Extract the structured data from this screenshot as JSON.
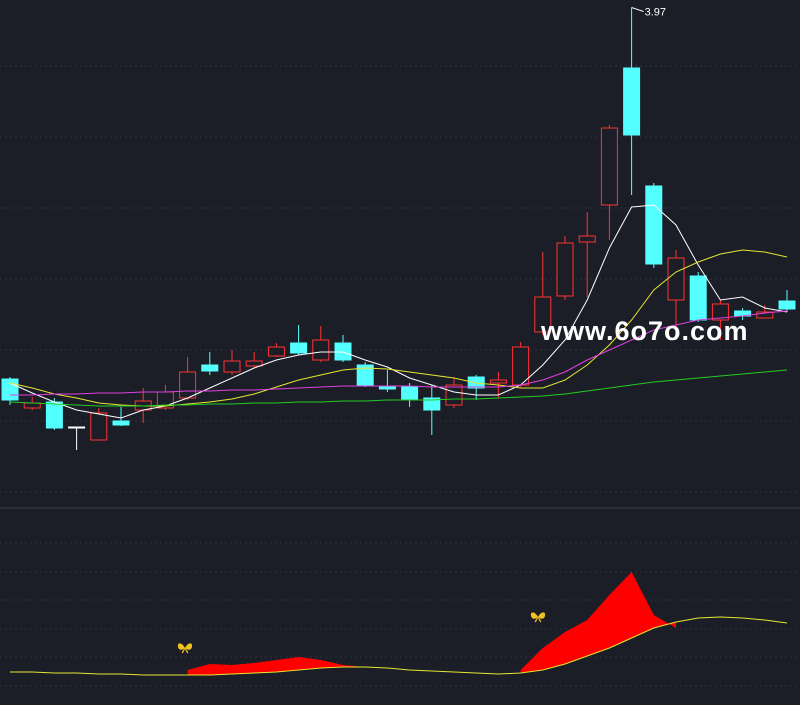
{
  "chart_data": [
    {
      "type": "candlestick",
      "ylim": [
        2,
        4
      ],
      "up_color": "#ff3232",
      "down_color": "#54ffff",
      "flat_color": "#ffffff",
      "open": [
        2.484,
        2.368,
        2.392,
        2.292,
        2.24,
        2.316,
        2.36,
        2.368,
        2.408,
        2.54,
        2.512,
        2.536,
        2.576,
        2.628,
        2.56,
        2.628,
        2.54,
        2.456,
        2.452,
        2.408,
        2.38,
        2.492,
        2.468,
        2.46,
        2.672,
        2.816,
        3.032,
        3.18,
        3.728,
        3.256,
        2.8,
        2.896,
        2.72,
        2.756,
        2.728,
        2.796
      ],
      "high": [
        2.492,
        2.412,
        2.408,
        2.292,
        2.368,
        2.372,
        2.448,
        2.46,
        2.572,
        2.592,
        2.6,
        2.592,
        2.628,
        2.7,
        2.696,
        2.66,
        2.552,
        2.52,
        2.468,
        2.46,
        2.488,
        2.5,
        2.512,
        2.632,
        2.992,
        3.056,
        3.152,
        3.5,
        3.97,
        3.268,
        3.0,
        2.912,
        2.8,
        2.768,
        2.78,
        2.84
      ],
      "low": [
        2.38,
        2.36,
        2.28,
        2.2,
        2.24,
        2.296,
        2.308,
        2.36,
        2.4,
        2.5,
        2.5,
        2.528,
        2.572,
        2.58,
        2.552,
        2.552,
        2.452,
        2.432,
        2.372,
        2.26,
        2.368,
        2.4,
        2.408,
        2.452,
        2.66,
        2.8,
        2.812,
        3.04,
        3.22,
        2.928,
        2.64,
        2.712,
        2.64,
        2.72,
        2.728,
        2.752
      ],
      "close": [
        2.4,
        2.388,
        2.288,
        2.292,
        2.348,
        2.3,
        2.396,
        2.432,
        2.512,
        2.516,
        2.556,
        2.556,
        2.612,
        2.588,
        2.64,
        2.56,
        2.46,
        2.444,
        2.4,
        2.36,
        2.46,
        2.448,
        2.48,
        2.612,
        2.812,
        3.028,
        3.056,
        3.488,
        3.46,
        2.944,
        2.968,
        2.72,
        2.784,
        2.736,
        2.752,
        2.764
      ],
      "high_label_index": 28,
      "lines": [
        {
          "color": "#ffffff",
          "values": [
            2.468,
            2.428,
            2.392,
            2.36,
            2.344,
            2.328,
            2.36,
            2.376,
            2.408,
            2.448,
            2.488,
            2.528,
            2.56,
            2.58,
            2.592,
            2.592,
            2.56,
            2.532,
            2.488,
            2.46,
            2.432,
            2.42,
            2.42,
            2.46,
            2.54,
            2.64,
            2.8,
            3.008,
            3.172,
            3.18,
            3.1,
            2.94,
            2.8,
            2.812,
            2.768,
            2.752
          ]
        },
        {
          "color": "#e6e632",
          "values": [
            2.468,
            2.448,
            2.424,
            2.408,
            2.388,
            2.38,
            2.376,
            2.376,
            2.384,
            2.392,
            2.404,
            2.424,
            2.452,
            2.48,
            2.5,
            2.52,
            2.528,
            2.524,
            2.512,
            2.5,
            2.488,
            2.468,
            2.46,
            2.448,
            2.448,
            2.48,
            2.54,
            2.62,
            2.72,
            2.84,
            2.912,
            2.952,
            2.984,
            3.0,
            2.992,
            2.972
          ]
        },
        {
          "color": "#e040e0",
          "values": [
            2.42,
            2.42,
            2.424,
            2.424,
            2.428,
            2.428,
            2.432,
            2.432,
            2.436,
            2.436,
            2.44,
            2.44,
            2.444,
            2.448,
            2.452,
            2.456,
            2.456,
            2.456,
            2.456,
            2.452,
            2.452,
            2.452,
            2.452,
            2.46,
            2.48,
            2.512,
            2.56,
            2.6,
            2.64,
            2.68,
            2.7,
            2.72,
            2.728,
            2.736,
            2.748,
            2.756
          ]
        },
        {
          "color": "#22cc22",
          "values": [
            2.392,
            2.388,
            2.384,
            2.38,
            2.376,
            2.376,
            2.376,
            2.38,
            2.38,
            2.384,
            2.384,
            2.388,
            2.388,
            2.392,
            2.392,
            2.396,
            2.396,
            2.4,
            2.4,
            2.4,
            2.404,
            2.404,
            2.408,
            2.412,
            2.416,
            2.424,
            2.436,
            2.448,
            2.46,
            2.472,
            2.48,
            2.488,
            2.496,
            2.504,
            2.512,
            2.52
          ]
        }
      ]
    },
    {
      "type": "indicator",
      "ylim": [
        0,
        195
      ],
      "area": {
        "color": "#ff0000",
        "values": [
          null,
          null,
          null,
          null,
          null,
          null,
          null,
          null,
          35,
          41,
          40,
          42,
          45,
          48,
          45,
          40,
          38,
          null,
          null,
          null,
          null,
          null,
          null,
          35,
          57,
          73,
          85,
          110,
          133,
          90,
          77,
          null,
          null,
          null,
          null,
          null
        ]
      },
      "line": {
        "color": "#e6e632",
        "values": [
          33,
          33,
          32,
          32,
          31,
          31,
          30,
          30,
          30,
          30,
          31,
          32,
          33,
          35,
          37,
          38,
          38,
          37,
          35,
          34,
          33,
          32,
          31,
          32,
          35,
          41,
          49,
          57,
          67,
          77,
          83,
          87,
          88,
          87,
          85,
          82
        ]
      }
    }
  ],
  "watermark": "www.6o7o.com"
}
